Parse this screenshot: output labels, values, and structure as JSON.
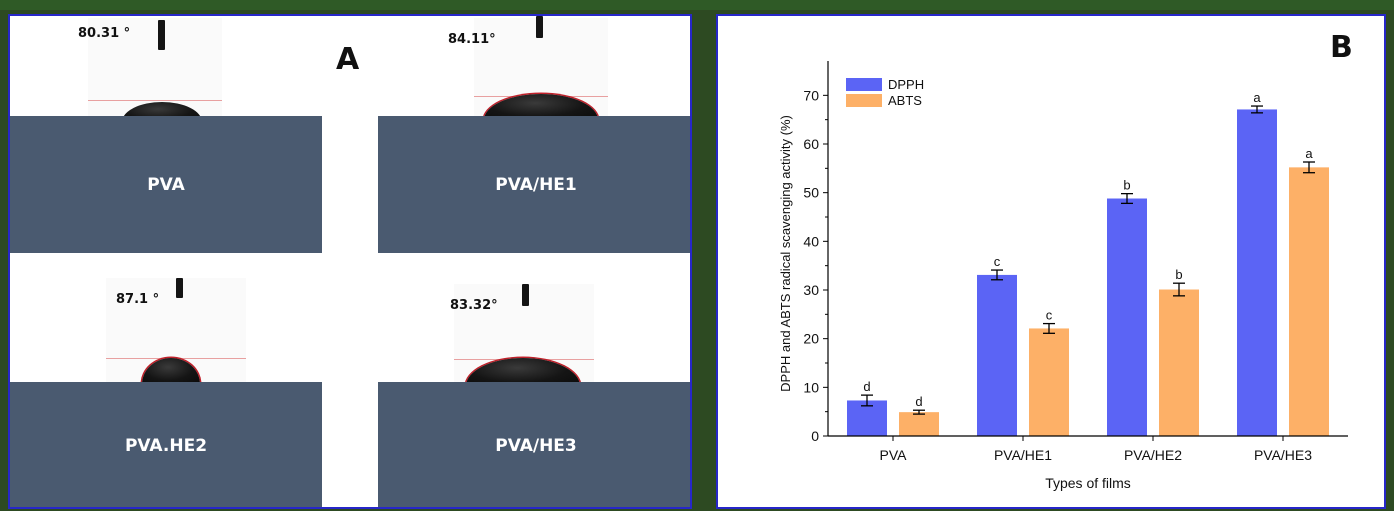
{
  "panel_a": {
    "letter": "A",
    "samples": [
      {
        "name": "PVA",
        "angle": "80.31 °"
      },
      {
        "name": "PVA/HE1",
        "angle": "84.11°"
      },
      {
        "name": "PVA.HE2",
        "angle": "87.1 °"
      },
      {
        "name": "PVA/HE3",
        "angle": "83.32°"
      }
    ]
  },
  "panel_b": {
    "letter": "B"
  },
  "colors": {
    "dpph": "#5b64f5",
    "abts": "#fdb067",
    "frame": "#2727c9",
    "slab": "#4a5a70"
  },
  "chart_data": {
    "type": "bar",
    "title": "",
    "categories": [
      "PVA",
      "PVA/HE1",
      "PVA/HE2",
      "PVA/HE3"
    ],
    "series": [
      {
        "name": "DPPH",
        "values": [
          7.3,
          33.1,
          48.8,
          67.1
        ],
        "errors": [
          1.1,
          1.0,
          1.0,
          0.7
        ],
        "labels": [
          "d",
          "c",
          "b",
          "a"
        ]
      },
      {
        "name": "ABTS",
        "values": [
          4.9,
          22.1,
          30.1,
          55.2
        ],
        "errors": [
          0.4,
          1.0,
          1.3,
          1.1
        ],
        "labels": [
          "d",
          "c",
          "b",
          "a"
        ]
      }
    ],
    "xlabel": "Types of films",
    "ylabel": "DPPH and ABTS radical scavenging activity (%)",
    "ylim": [
      0,
      75
    ],
    "yticks": [
      0,
      10,
      20,
      30,
      40,
      50,
      60,
      70
    ],
    "legend": "top-left",
    "grid": false
  }
}
